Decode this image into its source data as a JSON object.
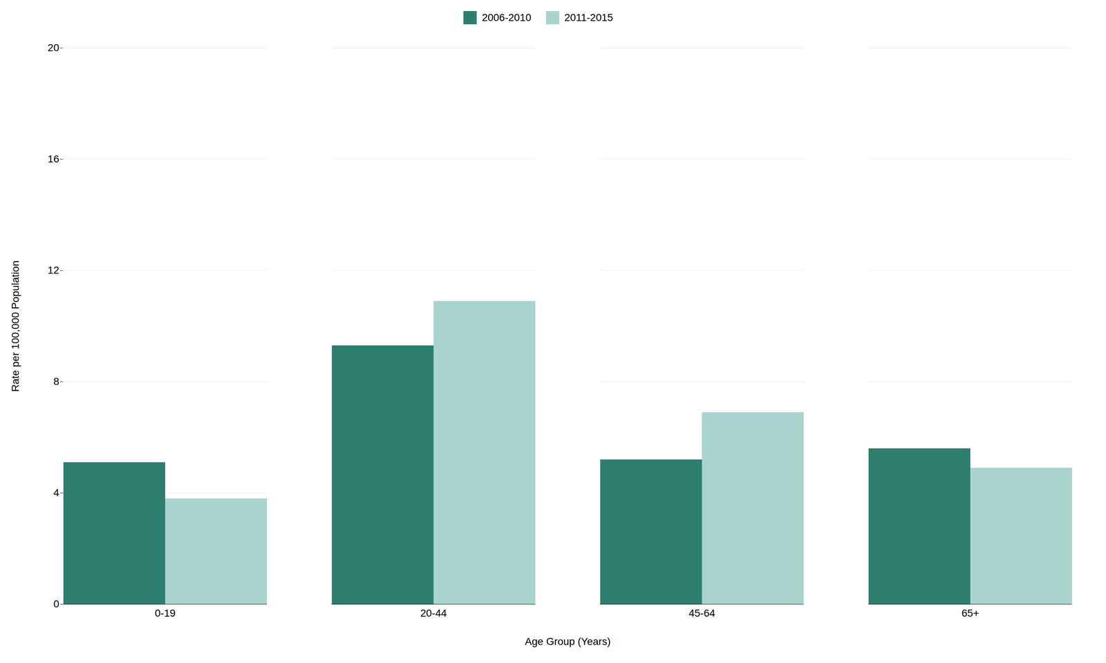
{
  "chart_data": {
    "type": "bar",
    "categories": [
      "0-19",
      "20-44",
      "45-64",
      "65+"
    ],
    "series": [
      {
        "name": "2006-2010",
        "color": "#2e7e6e",
        "values": [
          5.1,
          9.3,
          5.2,
          5.6
        ]
      },
      {
        "name": "2011-2015",
        "color": "#aad3ce",
        "values": [
          3.8,
          10.9,
          6.9,
          4.9
        ]
      }
    ],
    "xlabel": "Age Group (Years)",
    "ylabel": "Rate per 100,000 Population",
    "ylim": [
      0,
      20
    ],
    "yticks": [
      0,
      4,
      8,
      12,
      16,
      20
    ],
    "grid": true,
    "legend": "top"
  }
}
